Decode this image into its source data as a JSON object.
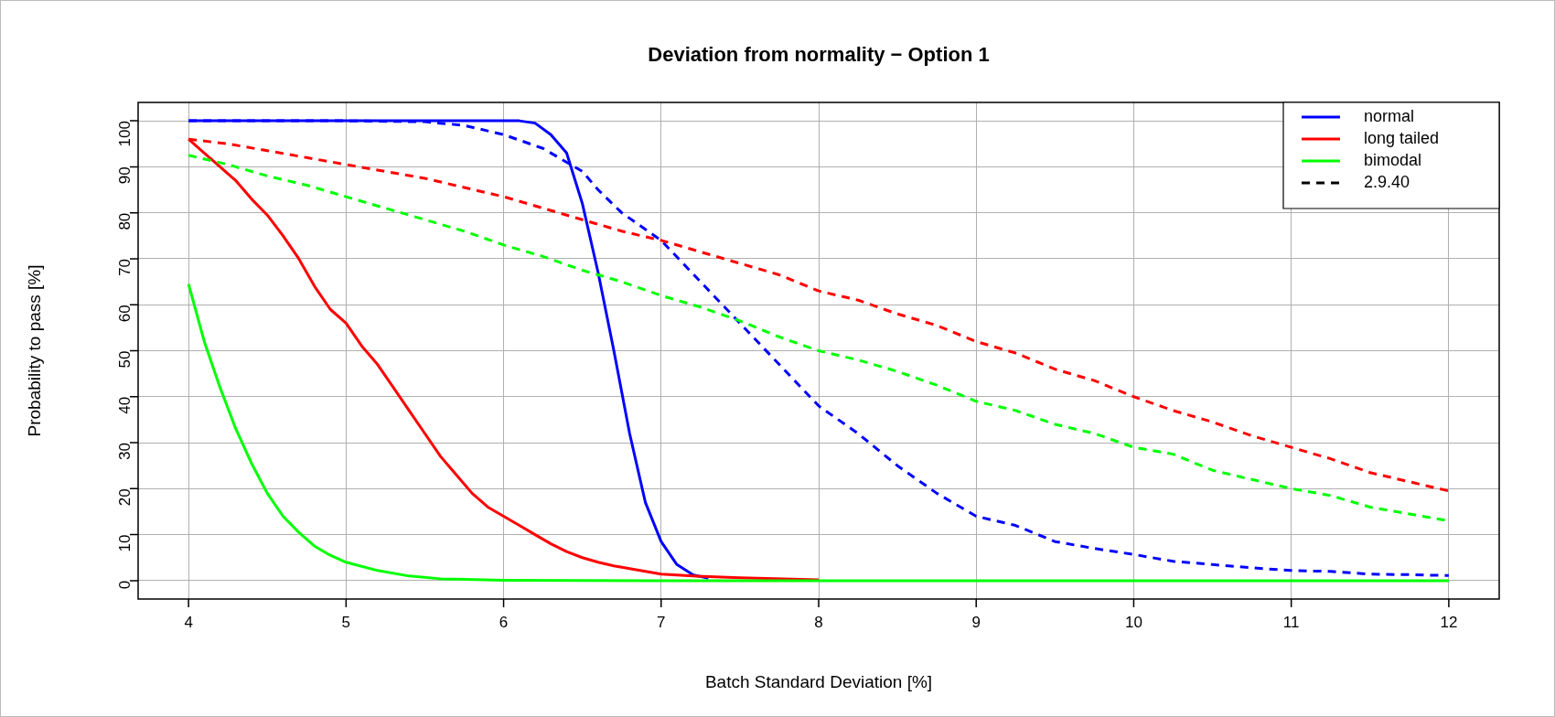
{
  "chart_data": {
    "type": "line",
    "title": "Deviation from normality − Option 1",
    "xlabel": "Batch Standard Deviation [%]",
    "ylabel": "Probability to pass [%]",
    "xlim": [
      3.68,
      12.32
    ],
    "ylim": [
      -4,
      104
    ],
    "xticks": [
      4,
      5,
      6,
      7,
      8,
      9,
      10,
      11,
      12
    ],
    "yticks": [
      0,
      10,
      20,
      30,
      40,
      50,
      60,
      70,
      80,
      90,
      100
    ],
    "grid": true,
    "legend": "top right",
    "marker": "none",
    "line_style": "solid",
    "series": [
      {
        "name": "normal",
        "color": "#0000ff",
        "x": [
          4,
          5,
          6,
          6.1,
          6.2,
          6.3,
          6.4,
          6.5,
          6.6,
          6.7,
          6.8,
          6.9,
          7,
          7.1,
          7.2,
          7.3
        ],
        "values": [
          100,
          100,
          100,
          100,
          99.5,
          97,
          93,
          82,
          67,
          50,
          32,
          17,
          8.5,
          3.5,
          1.3,
          0.5
        ]
      },
      {
        "name": "long tailed",
        "color": "#ff0000",
        "x": [
          4,
          4.1,
          4.2,
          4.3,
          4.4,
          4.5,
          4.6,
          4.7,
          4.8,
          4.9,
          5,
          5.1,
          5.2,
          5.3,
          5.4,
          5.5,
          5.6,
          5.7,
          5.8,
          5.9,
          6,
          6.1,
          6.2,
          6.3,
          6.4,
          6.5,
          6.6,
          6.7,
          6.8,
          6.9,
          7,
          7.2,
          7.5,
          8
        ],
        "values": [
          96,
          93,
          90,
          87,
          83,
          79.5,
          75,
          70,
          64,
          59,
          56,
          51,
          47,
          42,
          37,
          32,
          27,
          23,
          19,
          16,
          14,
          12,
          10,
          8,
          6.3,
          5,
          4,
          3.2,
          2.6,
          2,
          1.4,
          1,
          0.6,
          0.2
        ]
      },
      {
        "name": "bimodal",
        "color": "#00ff00",
        "x": [
          4,
          4.1,
          4.2,
          4.3,
          4.4,
          4.5,
          4.6,
          4.7,
          4.8,
          4.9,
          5,
          5.2,
          5.4,
          5.6,
          6,
          7,
          8,
          9,
          10,
          11,
          12
        ],
        "values": [
          64.5,
          52,
          42,
          33,
          25.5,
          19,
          14,
          10.5,
          7.5,
          5.5,
          4,
          2.2,
          1,
          0.4,
          0.1,
          0,
          0,
          0,
          0,
          0,
          0
        ]
      },
      {
        "color": "#0000ff",
        "line_style": "dashed",
        "x": [
          4,
          5,
          5.5,
          5.75,
          6,
          6.25,
          6.5,
          6.6,
          6.75,
          7,
          7.25,
          7.5,
          7.75,
          8,
          8.25,
          8.5,
          8.75,
          9,
          9.25,
          9.5,
          9.75,
          10,
          10.25,
          10.5,
          10.75,
          11,
          11.25,
          11.5,
          11.75,
          12
        ],
        "values": [
          100,
          100,
          99.8,
          99,
          97,
          94,
          89,
          85,
          80,
          74,
          65,
          56,
          47,
          38,
          32,
          25,
          19,
          14,
          12,
          8.5,
          7,
          5.7,
          4.2,
          3.5,
          2.8,
          2.2,
          2,
          1.4,
          1.3,
          1.1
        ]
      },
      {
        "color": "#ff0000",
        "line_style": "dashed",
        "x": [
          4,
          4.25,
          4.5,
          4.75,
          5,
          5.25,
          5.5,
          5.75,
          6,
          6.25,
          6.5,
          6.75,
          7,
          7.25,
          7.5,
          7.75,
          8,
          8.25,
          8.5,
          8.75,
          9,
          9.25,
          9.5,
          9.75,
          10,
          10.25,
          10.5,
          10.75,
          11,
          11.25,
          11.5,
          11.75,
          12
        ],
        "values": [
          96,
          95,
          93.5,
          92,
          90.5,
          89,
          87.5,
          85.5,
          83.5,
          81,
          78.5,
          76,
          74,
          71.5,
          69,
          66.5,
          63,
          61,
          58,
          55.5,
          52,
          49.5,
          46,
          43.5,
          40,
          37,
          34.5,
          31.5,
          29,
          26.5,
          23.5,
          21.5,
          19.5
        ]
      },
      {
        "color": "#00ff00",
        "line_style": "dashed",
        "x": [
          4,
          4.25,
          4.5,
          4.75,
          5,
          5.25,
          5.5,
          5.75,
          6,
          6.25,
          6.5,
          6.75,
          7,
          7.25,
          7.5,
          7.75,
          8,
          8.25,
          8.5,
          8.75,
          9,
          9.25,
          9.5,
          9.75,
          10,
          10.25,
          10.5,
          10.75,
          11,
          11.25,
          11.5,
          11.75,
          12
        ],
        "values": [
          92.5,
          90.5,
          88,
          86,
          83.5,
          81,
          78.5,
          76,
          73,
          70.5,
          67.5,
          65,
          62,
          59.5,
          56.5,
          53,
          50,
          48,
          45.5,
          42.5,
          39,
          37,
          34,
          32,
          29,
          27.5,
          24,
          22,
          20,
          18.5,
          16,
          14.5,
          13
        ]
      },
      {
        "name": "2.9.40",
        "color": "#000000",
        "line_style": "dashed"
      }
    ]
  }
}
